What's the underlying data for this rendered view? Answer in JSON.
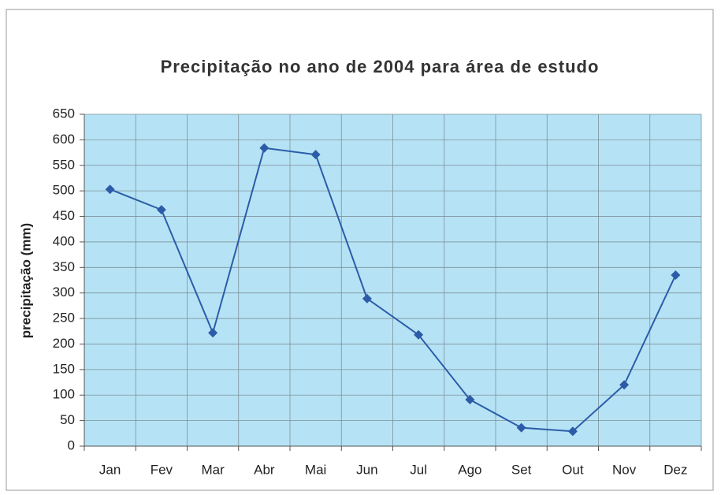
{
  "chart_data": {
    "type": "line",
    "title": "Precipitação no ano de 2004 para área de estudo",
    "y_label": "precipitação (mm)",
    "categories": [
      "Jan",
      "Fev",
      "Mar",
      "Abr",
      "Mai",
      "Jun",
      "Jul",
      "Ago",
      "Set",
      "Out",
      "Nov",
      "Dez"
    ],
    "series": [
      {
        "name": "precipitação",
        "color": "#2c5ca8",
        "values": [
          503,
          463,
          222,
          584,
          571,
          289,
          218,
          91,
          36,
          29,
          120,
          335
        ]
      }
    ],
    "ylim": [
      0,
      650
    ],
    "yticks": [
      0,
      50,
      100,
      150,
      200,
      250,
      300,
      350,
      400,
      450,
      500,
      550,
      600,
      650
    ],
    "grid": true,
    "plot_background": "#b5e3f5"
  }
}
